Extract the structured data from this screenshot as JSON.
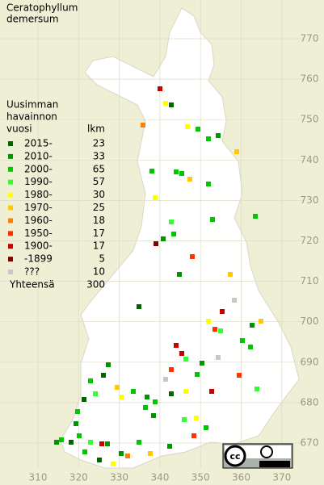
{
  "title": [
    "Ceratophyllum",
    "demersum"
  ],
  "legend": {
    "header": [
      "Uusimman",
      "havainnon",
      "vuosi"
    ],
    "count_header": "lkm",
    "rows": [
      {
        "label": "2015-",
        "count": 23,
        "color": "#006400"
      },
      {
        "label": "2010-",
        "count": 33,
        "color": "#009600"
      },
      {
        "label": "2000-",
        "count": 65,
        "color": "#00c800"
      },
      {
        "label": "1990-",
        "count": 57,
        "color": "#32ff32"
      },
      {
        "label": "1980-",
        "count": 30,
        "color": "#ffff00"
      },
      {
        "label": "1970-",
        "count": 25,
        "color": "#ffc800"
      },
      {
        "label": "1960-",
        "count": 18,
        "color": "#ff8000"
      },
      {
        "label": "1950-",
        "count": 17,
        "color": "#ff3200"
      },
      {
        "label": "1900-",
        "count": 17,
        "color": "#c80000"
      },
      {
        "label": "-1899",
        "count": 5,
        "color": "#820000"
      },
      {
        "label": "???",
        "count": 10,
        "color": "#c8c8c8"
      }
    ],
    "total_label": "Yhteensä",
    "total": 300
  },
  "xticks": [
    310,
    320,
    330,
    340,
    350,
    360,
    370
  ],
  "yticks": [
    670,
    680,
    690,
    700,
    710,
    720,
    730,
    740,
    750,
    760,
    770
  ]
}
